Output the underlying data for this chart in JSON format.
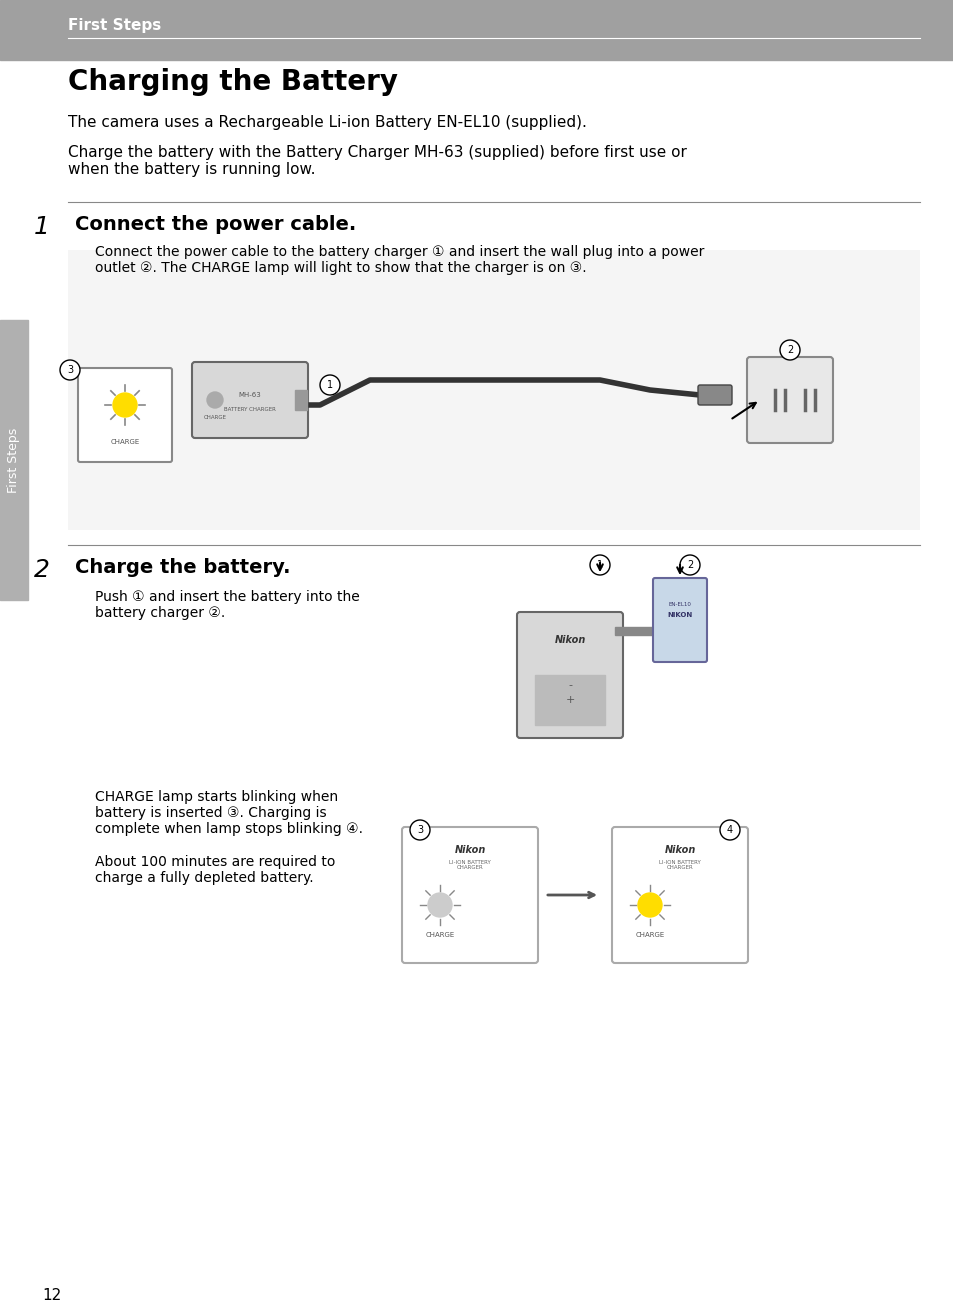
{
  "bg_color": "#ffffff",
  "header_bg": "#a0a0a0",
  "header_text": "First Steps",
  "header_text_color": "#ffffff",
  "title": "Charging the Battery",
  "title_color": "#000000",
  "page_number": "12",
  "sidebar_color": "#b0b0b0",
  "intro_lines": [
    "The camera uses a Rechargeable Li-ion Battery EN-EL10 (supplied).",
    "Charge the battery with the Battery Charger MH-63 (supplied) before first use or\nwhen the battery is running low."
  ],
  "step1_num": "1",
  "step1_heading": "Connect the power cable.",
  "step1_desc": "Connect the power cable to the battery charger ① and insert the wall plug into a power\noutlet ②. The CHARGE lamp will light to show that the charger is on ③.",
  "step2_num": "2",
  "step2_heading": "Charge the battery.",
  "step2_desc1": "Push ① and insert the battery into the\nbattery charger ②.",
  "step2_desc2": "CHARGE lamp starts blinking when\nbattery is inserted ③. Charging is\ncomplete when lamp stops blinking ④.\n\nAbout 100 minutes are required to\ncharge a fully depleted battery.",
  "divider_color": "#888888",
  "sidebar_text": "First Steps",
  "font_size_header": 11,
  "font_size_title": 20,
  "font_size_intro": 11,
  "font_size_step_num": 18,
  "font_size_step_heading": 14,
  "font_size_step_desc": 10,
  "font_size_page": 11
}
